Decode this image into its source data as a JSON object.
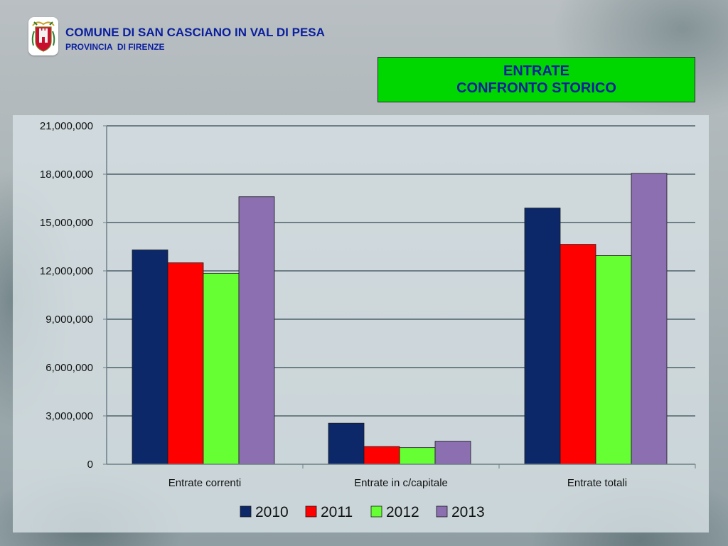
{
  "header": {
    "org_title": "COMUNE DI SAN CASCIANO IN VAL DI PESA",
    "org_subtitle": "PROVINCIA  DI FIRENZE",
    "logo_icon": "coat-of-arms-icon"
  },
  "title_box": {
    "line1": "ENTRATE",
    "line2": "CONFRONTO  STORICO",
    "background": "#00d600",
    "text_color": "#0b1f9e"
  },
  "chart_data": {
    "type": "bar",
    "categories": [
      "Entrate correnti",
      "Entrate in c/capitale",
      "Entrate totali"
    ],
    "series": [
      {
        "name": "2010",
        "color": "#0d2869",
        "values": [
          13300000,
          2550000,
          15900000
        ]
      },
      {
        "name": "2011",
        "color": "#ff0000",
        "values": [
          12500000,
          1100000,
          13650000
        ]
      },
      {
        "name": "2012",
        "color": "#66ff33",
        "values": [
          11850000,
          1030000,
          12950000
        ]
      },
      {
        "name": "2013",
        "color": "#8b6fb0",
        "values": [
          16600000,
          1430000,
          18050000
        ]
      }
    ],
    "ylim": [
      0,
      21000000
    ],
    "y_ticks": [
      "0",
      "3,000,000",
      "6,000,000",
      "9,000,000",
      "12,000,000",
      "15,000,000",
      "18,000,000",
      "21,000,000"
    ],
    "y_tick_values": [
      0,
      3000000,
      6000000,
      9000000,
      12000000,
      15000000,
      18000000,
      21000000
    ],
    "grid": true,
    "legend_position": "bottom"
  }
}
